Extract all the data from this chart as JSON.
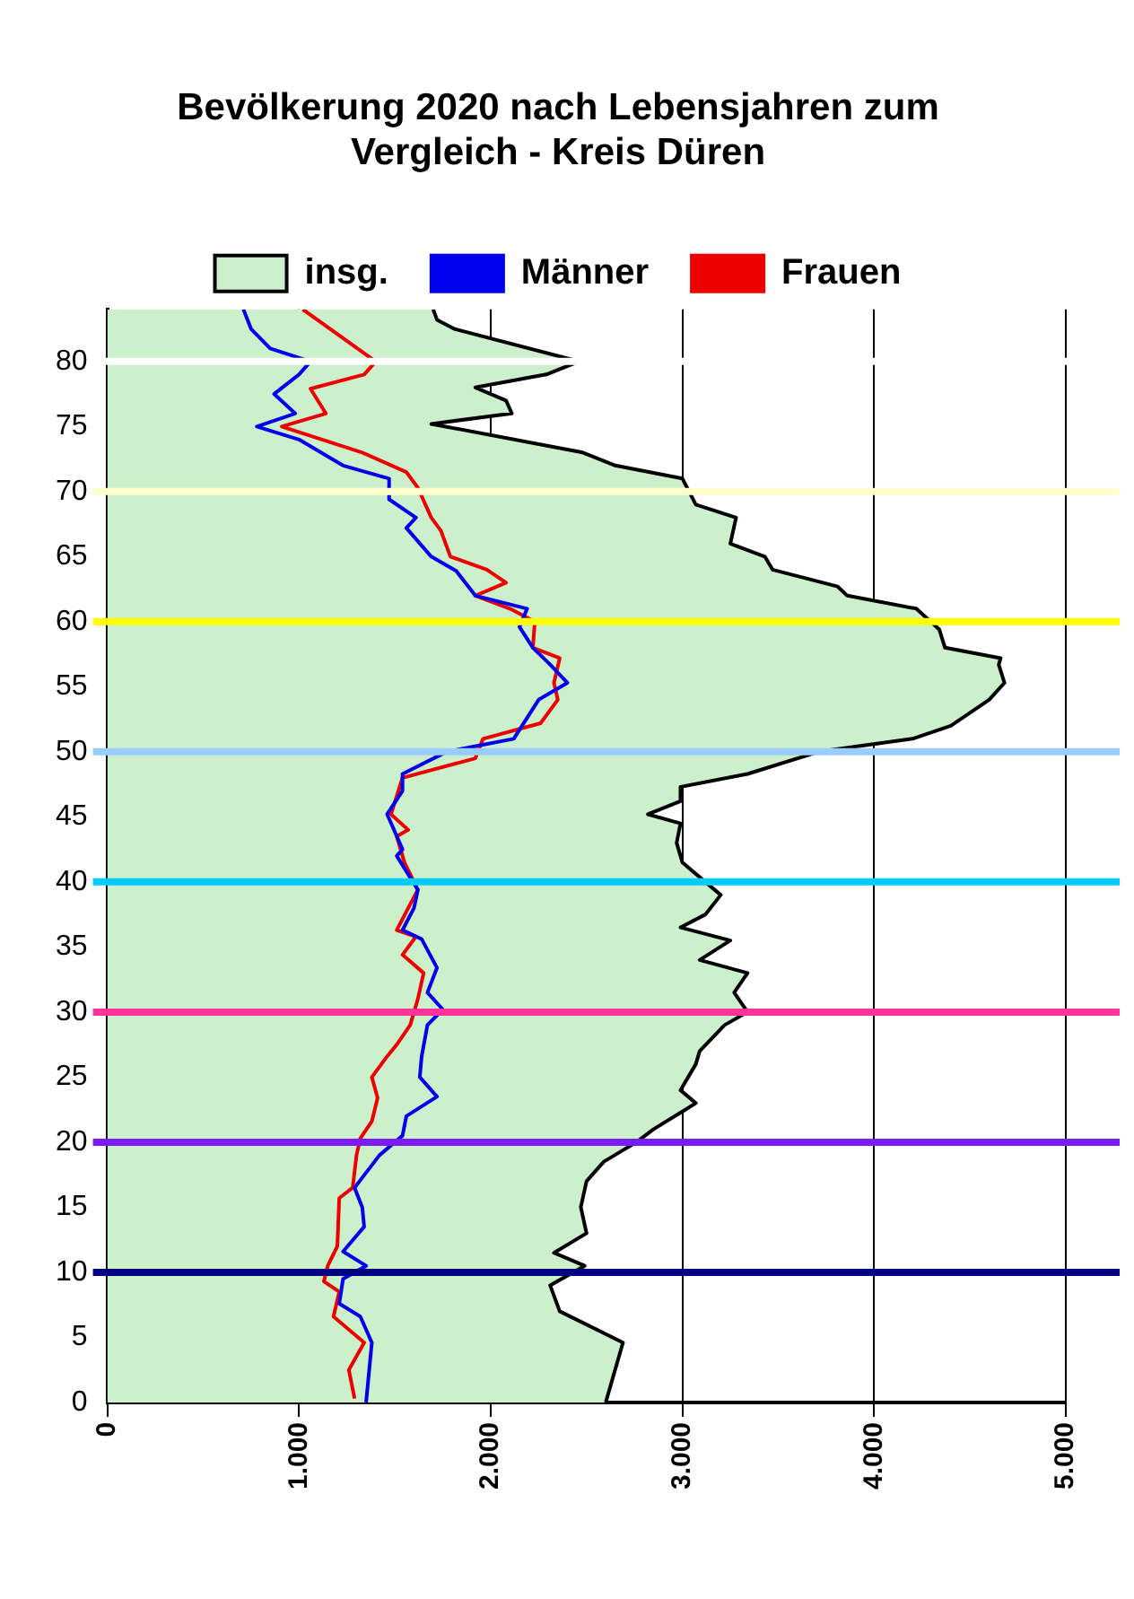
{
  "chart_data": {
    "type": "area",
    "orientation": "horizontal",
    "title": "Bevölkerung 2020 nach Lebensjahren zum Vergleich - Kreis Düren",
    "legend": "top",
    "grid": "x",
    "marker": "none",
    "xlim": [
      0,
      5000
    ],
    "xticks": [
      0,
      {
        "value": 1000,
        "label": "1.000"
      },
      {
        "value": 2000,
        "label": "2.000"
      },
      {
        "value": 3000,
        "label": "3.000"
      },
      {
        "value": 4000,
        "label": "4.000"
      },
      {
        "value": 5000,
        "label": "5.000"
      }
    ],
    "ylim": [
      0,
      84
    ],
    "yticks": [
      0,
      5,
      10,
      15,
      20,
      25,
      30,
      35,
      40,
      45,
      50,
      55,
      60,
      65,
      70,
      75,
      80
    ],
    "ref_lines": [
      {
        "axis": "y",
        "value": 10,
        "color": "#000080"
      },
      {
        "axis": "y",
        "value": 20,
        "color": "#7a1cf5"
      },
      {
        "axis": "y",
        "value": 30,
        "color": "#ff3399"
      },
      {
        "axis": "y",
        "value": 40,
        "color": "#00ccff"
      },
      {
        "axis": "y",
        "value": 50,
        "color": "#99ccff"
      },
      {
        "axis": "y",
        "value": 60,
        "color": "#ffff00"
      },
      {
        "axis": "y",
        "value": 70,
        "color": "#ffffcc"
      },
      {
        "axis": "y",
        "value": 80,
        "color": "#ffffff"
      }
    ],
    "series": [
      {
        "name": "insg.",
        "type": "area",
        "color": "#ccf0cc",
        "x": [
          0,
          4.6,
          7,
          9,
          10.5,
          11.5,
          13,
          15,
          17,
          18.5,
          20,
          21,
          23,
          24,
          26,
          27,
          29,
          30,
          31.5,
          33,
          34,
          35.5,
          36.5,
          37.5,
          39,
          41.5,
          43,
          44.5,
          45.2,
          46.2,
          47.3,
          48.3,
          50,
          51,
          52,
          54,
          55.3,
          56.7,
          57.2,
          58,
          59.4,
          61,
          62,
          62.7,
          64,
          65,
          66,
          68,
          69,
          71,
          72,
          73,
          75.2,
          76,
          77,
          78,
          79,
          80,
          82.5,
          83.2,
          84
        ],
        "values": [
          2600,
          2690,
          2360,
          2310,
          2490,
          2330,
          2500,
          2470,
          2500,
          2590,
          2760,
          2850,
          3070,
          2990,
          3070,
          3090,
          3220,
          3340,
          3270,
          3340,
          3090,
          3250,
          2990,
          3120,
          3200,
          3000,
          2970,
          2990,
          2820,
          2990,
          2990,
          3340,
          3710,
          4200,
          4400,
          4600,
          4680,
          4650,
          4660,
          4370,
          4340,
          4220,
          3860,
          3810,
          3470,
          3430,
          3250,
          3280,
          3070,
          3000,
          2650,
          2480,
          1690,
          2110,
          2080,
          1920,
          2290,
          2460,
          1810,
          1720,
          1700
        ]
      },
      {
        "name": "Männer",
        "type": "line",
        "color": "#0000ee",
        "x": [
          0,
          4.6,
          6.6,
          7.6,
          9.5,
          10.5,
          11.6,
          13.5,
          15,
          16.5,
          19,
          20.5,
          22,
          23.5,
          25,
          26.6,
          29,
          30.2,
          31.5,
          33.4,
          35.6,
          36.3,
          38,
          39.4,
          42,
          42.5,
          45.2,
          47,
          48.3,
          50,
          51,
          54,
          55.3,
          56.7,
          58,
          59.6,
          61,
          62,
          63.9,
          65,
          67.2,
          68,
          69.4,
          71,
          72,
          74,
          75,
          76,
          77.5,
          79,
          80,
          81,
          82.5,
          84
        ],
        "values": [
          1350,
          1380,
          1320,
          1210,
          1230,
          1350,
          1230,
          1340,
          1330,
          1290,
          1420,
          1540,
          1560,
          1720,
          1630,
          1640,
          1670,
          1750,
          1670,
          1720,
          1640,
          1540,
          1600,
          1620,
          1510,
          1540,
          1460,
          1540,
          1540,
          1770,
          2120,
          2250,
          2400,
          2310,
          2220,
          2150,
          2190,
          1920,
          1820,
          1690,
          1560,
          1610,
          1470,
          1470,
          1230,
          1000,
          780,
          980,
          870,
          1000,
          1060,
          850,
          750,
          710
        ]
      },
      {
        "name": "Frauen",
        "type": "line",
        "color": "#ee0000",
        "x": [
          0.3,
          2.5,
          4.6,
          6.6,
          8.5,
          9.3,
          10.5,
          12,
          15.7,
          16.5,
          19,
          20.3,
          21.6,
          23.4,
          25,
          26.6,
          27.5,
          29,
          31,
          33,
          34.4,
          35.8,
          36.3,
          38,
          39.4,
          41.5,
          43.5,
          44,
          45.2,
          48,
          49.5,
          51,
          52.2,
          54,
          55.3,
          57.2,
          58,
          60,
          61,
          62,
          63,
          64,
          65,
          67,
          68,
          70.3,
          71.5,
          73,
          75,
          76,
          77.9,
          79,
          80,
          84
        ],
        "values": [
          1290,
          1260,
          1340,
          1180,
          1210,
          1130,
          1150,
          1200,
          1210,
          1280,
          1300,
          1320,
          1380,
          1410,
          1380,
          1460,
          1510,
          1580,
          1620,
          1650,
          1540,
          1610,
          1510,
          1570,
          1620,
          1550,
          1510,
          1570,
          1480,
          1540,
          1920,
          1960,
          2260,
          2350,
          2330,
          2360,
          2220,
          2230,
          2100,
          1920,
          2080,
          1980,
          1790,
          1740,
          1690,
          1620,
          1560,
          1330,
          910,
          1140,
          1060,
          1340,
          1400,
          1020
        ]
      }
    ]
  }
}
